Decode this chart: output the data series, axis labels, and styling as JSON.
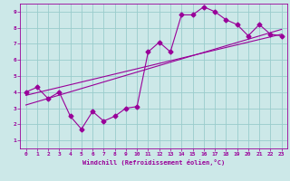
{
  "bg_color": "#cce8e8",
  "line_color": "#990099",
  "grid_color": "#99cccc",
  "xlabel": "Windchill (Refroidissement éolien,°C)",
  "xlim": [
    -0.5,
    23.5
  ],
  "ylim": [
    0.5,
    9.5
  ],
  "xticks": [
    0,
    1,
    2,
    3,
    4,
    5,
    6,
    7,
    8,
    9,
    10,
    11,
    12,
    13,
    14,
    15,
    16,
    17,
    18,
    19,
    20,
    21,
    22,
    23
  ],
  "yticks": [
    1,
    2,
    3,
    4,
    5,
    6,
    7,
    8,
    9
  ],
  "series1_x": [
    0,
    1,
    2,
    3,
    4,
    5,
    6,
    7,
    8,
    9,
    10,
    11,
    12,
    13,
    14,
    15,
    16,
    17,
    18,
    19,
    20,
    21,
    22,
    23
  ],
  "series1_y": [
    4.0,
    4.3,
    3.6,
    4.0,
    2.5,
    1.7,
    2.8,
    2.2,
    2.5,
    3.0,
    3.1,
    6.5,
    7.1,
    6.5,
    8.8,
    8.8,
    9.3,
    9.0,
    8.5,
    8.2,
    7.5,
    8.2,
    7.6,
    7.5
  ],
  "series2_x": [
    0,
    23
  ],
  "series2_y": [
    3.8,
    7.6
  ],
  "series3_x": [
    0,
    23
  ],
  "series3_y": [
    3.2,
    7.9
  ],
  "marker": "D",
  "markersize": 2.5,
  "linewidth": 0.8,
  "tick_fontsize": 4.5,
  "xlabel_fontsize": 5.0
}
